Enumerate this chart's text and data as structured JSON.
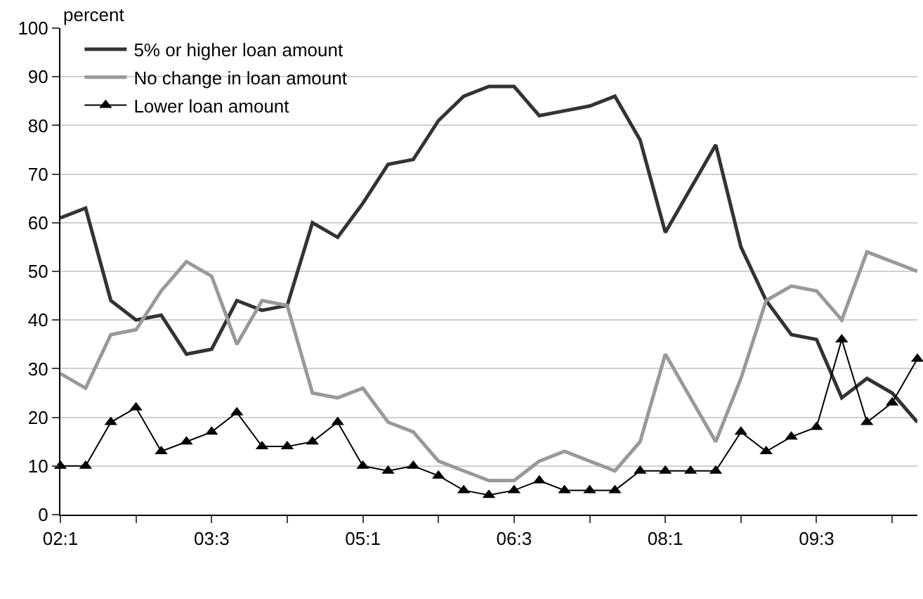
{
  "chart_data": {
    "type": "line",
    "ylabel": "percent",
    "categories": [
      "02:1",
      null,
      null,
      null,
      null,
      null,
      "03:3",
      null,
      null,
      null,
      null,
      null,
      "05:1",
      null,
      null,
      null,
      null,
      null,
      "06:3",
      null,
      null,
      null,
      null,
      null,
      "08:1",
      null,
      null,
      null,
      null,
      null,
      "09:3",
      null,
      null,
      null,
      null
    ],
    "series": [
      {
        "name": "5% or higher loan amount",
        "color": "#333333",
        "marker": "none",
        "values": [
          61,
          63,
          44,
          40,
          41,
          33,
          34,
          44,
          42,
          43,
          60,
          57,
          64,
          72,
          73,
          81,
          86,
          88,
          88,
          82,
          83,
          84,
          86,
          77,
          58,
          67,
          76,
          55,
          44,
          37,
          36,
          24,
          28,
          25,
          19
        ]
      },
      {
        "name": "No change in loan amount",
        "color": "#999999",
        "marker": "none",
        "values": [
          29,
          26,
          37,
          38,
          46,
          52,
          49,
          35,
          44,
          43,
          25,
          24,
          26,
          19,
          17,
          11,
          9,
          7,
          7,
          11,
          13,
          11,
          9,
          15,
          33,
          24,
          15,
          28,
          44,
          47,
          46,
          40,
          54,
          52,
          50
        ]
      },
      {
        "name": "Lower loan amount",
        "color": "#000000",
        "marker": "triangle",
        "values": [
          10,
          10,
          19,
          22,
          13,
          15,
          17,
          21,
          14,
          14,
          15,
          19,
          10,
          9,
          10,
          8,
          5,
          4,
          5,
          7,
          5,
          5,
          5,
          9,
          9,
          9,
          9,
          17,
          13,
          16,
          18,
          36,
          19,
          23,
          32
        ]
      }
    ],
    "ylim": [
      0,
      100
    ],
    "yticks": [
      0,
      10,
      20,
      30,
      40,
      50,
      60,
      70,
      80,
      90,
      100
    ],
    "grid": "y",
    "legend": "top left"
  }
}
